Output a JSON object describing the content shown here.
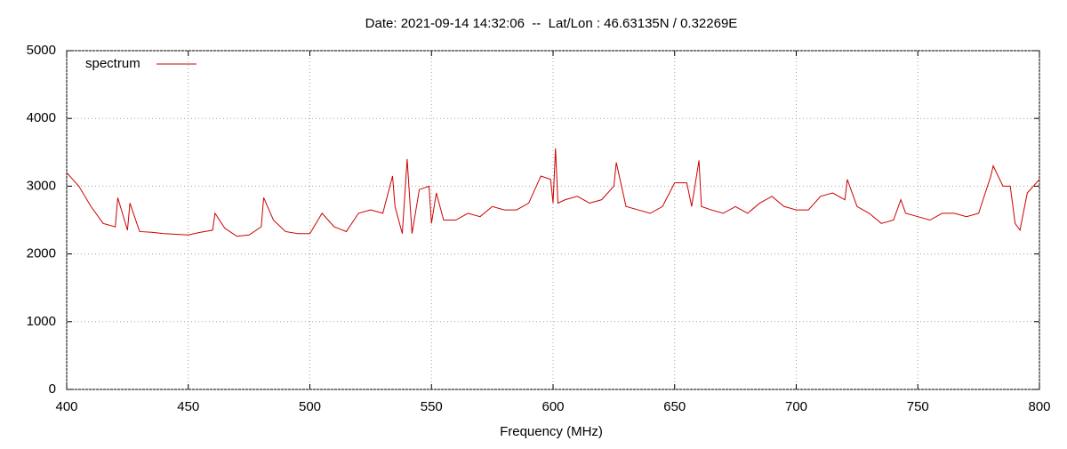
{
  "chart_data": {
    "type": "line",
    "title": "Date: 2021-09-14 14:32:06  --  Lat/Lon : 46.63135N / 0.32269E",
    "x_label": "Frequency (MHz)",
    "x": [
      400,
      405,
      410,
      415,
      420,
      421,
      425,
      426,
      430,
      435,
      440,
      445,
      450,
      455,
      460,
      461,
      465,
      470,
      475,
      480,
      481,
      485,
      490,
      495,
      500,
      505,
      510,
      515,
      520,
      525,
      530,
      534,
      535,
      538,
      540,
      542,
      545,
      549,
      550,
      552,
      555,
      560,
      565,
      570,
      575,
      580,
      585,
      590,
      595,
      599,
      600,
      601,
      602,
      605,
      610,
      615,
      620,
      625,
      626,
      630,
      635,
      640,
      645,
      650,
      655,
      657,
      660,
      661,
      665,
      670,
      675,
      680,
      685,
      690,
      695,
      700,
      705,
      710,
      715,
      720,
      721,
      725,
      730,
      735,
      740,
      743,
      745,
      750,
      755,
      760,
      765,
      770,
      775,
      780,
      781,
      785,
      788,
      790,
      792,
      795,
      800
    ],
    "series": [
      {
        "name": "spectrum",
        "color": "#cc0000",
        "values": [
          3200,
          3000,
          2700,
          2450,
          2400,
          2830,
          2350,
          2750,
          2330,
          2320,
          2300,
          2290,
          2280,
          2320,
          2350,
          2600,
          2380,
          2260,
          2280,
          2400,
          2830,
          2500,
          2330,
          2300,
          2300,
          2600,
          2400,
          2330,
          2600,
          2650,
          2600,
          3150,
          2700,
          2300,
          3400,
          2300,
          2950,
          3000,
          2450,
          2900,
          2500,
          2500,
          2600,
          2550,
          2700,
          2650,
          2650,
          2750,
          3150,
          3100,
          2750,
          3560,
          2750,
          2800,
          2850,
          2750,
          2800,
          3000,
          3350,
          2700,
          2650,
          2600,
          2700,
          3050,
          3050,
          2700,
          3380,
          2700,
          2650,
          2600,
          2700,
          2600,
          2750,
          2850,
          2700,
          2650,
          2650,
          2850,
          2900,
          2800,
          3100,
          2700,
          2600,
          2450,
          2500,
          2800,
          2600,
          2550,
          2500,
          2600,
          2600,
          2550,
          2600,
          3150,
          3300,
          3000,
          3000,
          2450,
          2350,
          2900,
          3100
        ]
      }
    ],
    "xlim": [
      400,
      800
    ],
    "xticks": [
      400,
      450,
      500,
      550,
      600,
      650,
      700,
      750,
      800
    ],
    "ylim": [
      0,
      5000
    ],
    "yticks": [
      0,
      1000,
      2000,
      3000,
      4000,
      5000
    ],
    "grid": true,
    "legend": "top-left"
  }
}
